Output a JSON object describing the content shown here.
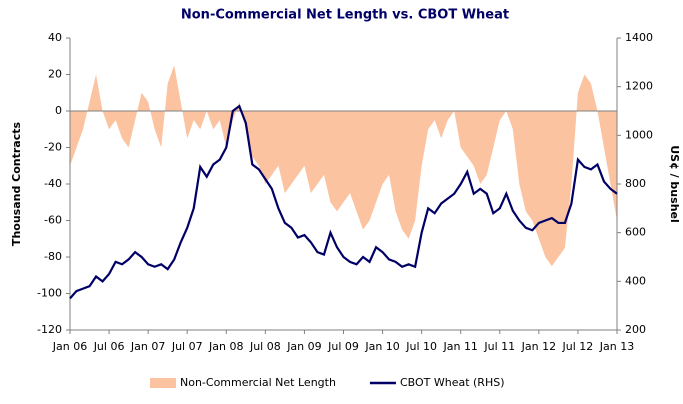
{
  "chart_data": {
    "type": "area-line",
    "title": "Non-Commercial Net Length vs. CBOT Wheat",
    "ylabel": "Thousand Contracts",
    "y2label": "US¢ / bushel",
    "categories": [
      "Jan 06",
      null,
      null,
      null,
      null,
      null,
      "Jul 06",
      null,
      null,
      null,
      null,
      null,
      "Jan 07",
      null,
      null,
      null,
      null,
      null,
      "Jul 07",
      null,
      null,
      null,
      null,
      null,
      "Jan 08",
      null,
      null,
      null,
      null,
      null,
      "Jul 08",
      null,
      null,
      null,
      null,
      null,
      "Jan 09",
      null,
      null,
      null,
      null,
      null,
      "Jul 09",
      null,
      null,
      null,
      null,
      null,
      "Jan 10",
      null,
      null,
      null,
      null,
      null,
      "Jul 10",
      null,
      null,
      null,
      null,
      null,
      "Jan 11",
      null,
      null,
      null,
      null,
      null,
      "Jul 11",
      null,
      null,
      null,
      null,
      null,
      "Jan 12",
      null,
      null,
      null,
      null,
      null,
      "Jul 12",
      null,
      null,
      null,
      null,
      null,
      "Jan 13"
    ],
    "series": [
      {
        "name": "Non-Commercial Net Length",
        "kind": "area",
        "color": "#fbc39f",
        "values": [
          -30,
          -20,
          -10,
          5,
          20,
          0,
          -10,
          -5,
          -15,
          -20,
          -5,
          10,
          5,
          -10,
          -20,
          15,
          25,
          5,
          -15,
          -5,
          -10,
          0,
          -10,
          -5,
          -20,
          -5,
          5,
          -10,
          -25,
          -30,
          -40,
          -35,
          -30,
          -45,
          -40,
          -35,
          -30,
          -45,
          -40,
          -35,
          -50,
          -55,
          -50,
          -45,
          -55,
          -65,
          -60,
          -50,
          -40,
          -35,
          -55,
          -65,
          -70,
          -60,
          -30,
          -10,
          -5,
          -15,
          -5,
          0,
          -20,
          -25,
          -30,
          -40,
          -35,
          -20,
          -5,
          0,
          -10,
          -40,
          -55,
          -60,
          -70,
          -80,
          -85,
          -80,
          -75,
          -40,
          10,
          20,
          15,
          0,
          -20,
          -40,
          -60
        ]
      },
      {
        "name": "CBOT Wheat (RHS)",
        "kind": "line",
        "axis": "y2",
        "color": "#000066",
        "values": [
          330,
          360,
          370,
          380,
          420,
          400,
          430,
          480,
          470,
          490,
          520,
          500,
          470,
          460,
          470,
          450,
          490,
          560,
          620,
          700,
          870,
          830,
          880,
          900,
          950,
          1100,
          1120,
          1050,
          880,
          860,
          820,
          780,
          700,
          640,
          620,
          580,
          590,
          560,
          520,
          510,
          600,
          540,
          500,
          480,
          470,
          500,
          480,
          540,
          520,
          490,
          480,
          460,
          470,
          460,
          600,
          700,
          680,
          720,
          740,
          760,
          800,
          850,
          760,
          780,
          760,
          680,
          700,
          760,
          690,
          650,
          620,
          610,
          640,
          650,
          660,
          640,
          640,
          720,
          900,
          870,
          860,
          880,
          810,
          780,
          760
        ]
      }
    ],
    "ylim": [
      -120,
      40
    ],
    "yticks": [
      -120,
      -100,
      -80,
      -60,
      -40,
      -20,
      0,
      20,
      40
    ],
    "y2lim": [
      200,
      1400
    ],
    "y2ticks": [
      200,
      400,
      600,
      800,
      1000,
      1200,
      1400
    ],
    "legend": "bottom"
  }
}
